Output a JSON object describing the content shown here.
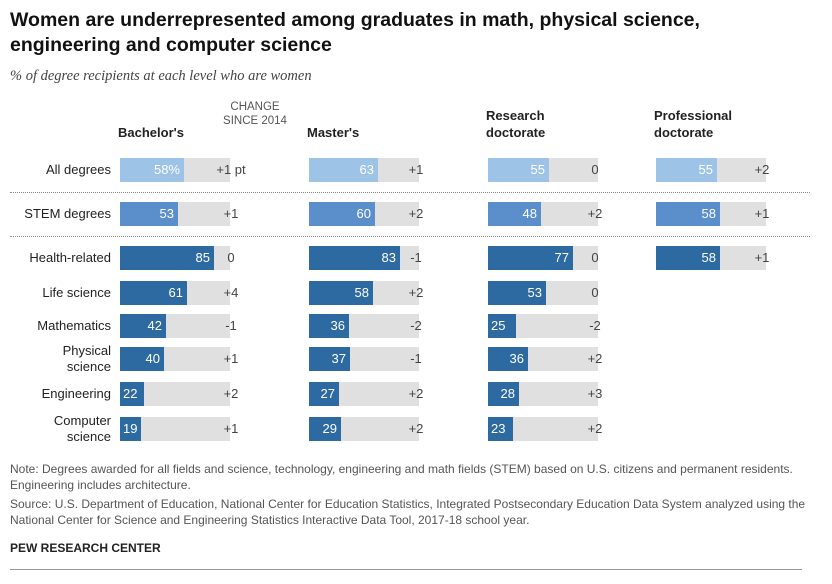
{
  "header": {
    "title": "Women are underrepresented among graduates in math, physical science, engineering and computer science",
    "subtitle": "% of degree recipients at each level who are women"
  },
  "change_header": "CHANGE SINCE 2014",
  "colors": {
    "all_degrees": "#9dc3e6",
    "stem_degrees": "#5a8fcb",
    "fields": "#2d6aa1",
    "track": "#e0e0e0"
  },
  "chart_data": {
    "type": "bar",
    "title": "Women are underrepresented among graduates in math, physical science, engineering and computer science",
    "subtitle": "% of degree recipients at each level who are women",
    "xlim": [
      0,
      100
    ],
    "categories": [
      "All degrees",
      "STEM degrees",
      "Health-related",
      "Life science",
      "Mathematics",
      "Physical science",
      "Engineering",
      "Computer science"
    ],
    "category_lines": [
      [
        "All degrees"
      ],
      [
        "STEM degrees"
      ],
      [
        "Health-related"
      ],
      [
        "Life science"
      ],
      [
        "Mathematics"
      ],
      [
        "Physical",
        "science"
      ],
      [
        "Engineering"
      ],
      [
        "Computer",
        "science"
      ]
    ],
    "groups": [
      "all",
      "stem",
      "field",
      "field",
      "field",
      "field",
      "field",
      "field"
    ],
    "series": [
      {
        "name": "Bachelor's",
        "header_lines": [
          "Bachelor's"
        ],
        "values": [
          58,
          53,
          85,
          61,
          42,
          40,
          22,
          19
        ],
        "value_labels": [
          "58%",
          "53",
          "85",
          "61",
          "42",
          "40",
          "22",
          "19"
        ],
        "changes": [
          "+1 pt",
          "+1",
          "0",
          "+4",
          "-1",
          "+1",
          "+2",
          "+1"
        ]
      },
      {
        "name": "Master's",
        "header_lines": [
          "Master's"
        ],
        "values": [
          63,
          60,
          83,
          58,
          36,
          37,
          27,
          29
        ],
        "value_labels": [
          "63",
          "60",
          "83",
          "58",
          "36",
          "37",
          "27",
          "29"
        ],
        "changes": [
          "+1",
          "+2",
          "-1",
          "+2",
          "-2",
          "-1",
          "+2",
          "+2"
        ]
      },
      {
        "name": "Research doctorate",
        "header_lines": [
          "Research",
          "doctorate"
        ],
        "values": [
          55,
          48,
          77,
          53,
          25,
          36,
          28,
          23
        ],
        "value_labels": [
          "55",
          "48",
          "77",
          "53",
          "25",
          "36",
          "28",
          "23"
        ],
        "changes": [
          "0",
          "+2",
          "0",
          "0",
          "-2",
          "+2",
          "+3",
          "+2"
        ]
      },
      {
        "name": "Professional doctorate",
        "header_lines": [
          "Professional",
          "doctorate"
        ],
        "values": [
          55,
          58,
          58,
          null,
          null,
          null,
          null,
          null
        ],
        "value_labels": [
          "55",
          "58",
          "58",
          null,
          null,
          null,
          null,
          null
        ],
        "changes": [
          "+2",
          "+1",
          "+1",
          null,
          null,
          null,
          null,
          null
        ]
      }
    ]
  },
  "footer": {
    "note": "Note: Degrees awarded for all fields and science, technology, engineering and math fields (STEM) based on U.S. citizens and permanent residents. Engineering includes architecture.",
    "source": "Source: U.S. Department of Education, National Center for Education Statistics, Integrated Postsecondary Education Data System analyzed using the National Center for Science and Engineering Statistics Interactive Data Tool, 2017-18 school year.",
    "brand": "PEW RESEARCH CENTER"
  }
}
